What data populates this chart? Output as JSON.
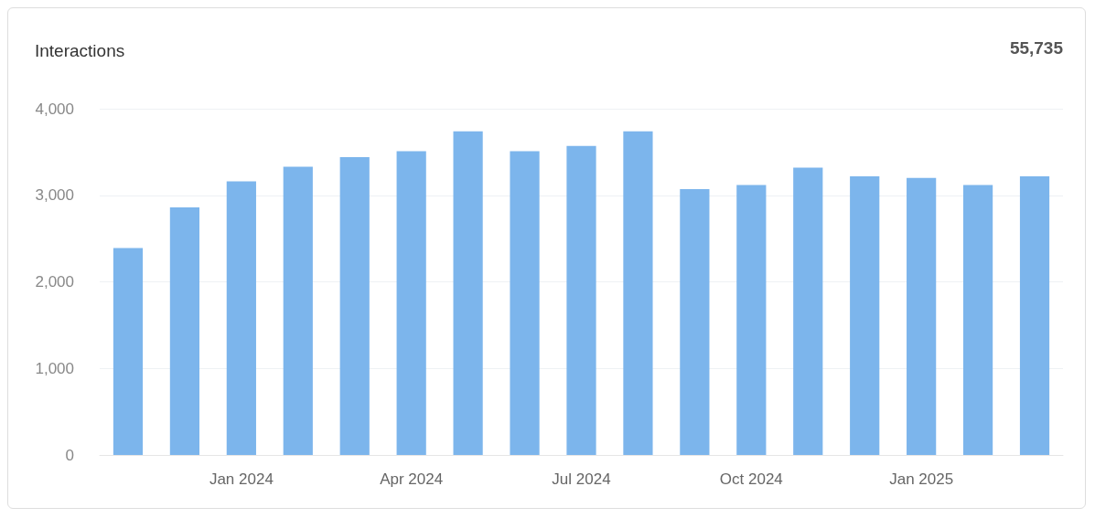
{
  "chart_data": {
    "type": "bar",
    "title": "Interactions",
    "annotations": [
      "55,735"
    ],
    "categories": [
      null,
      null,
      "Jan 2024",
      null,
      null,
      "Apr 2024",
      null,
      null,
      "Jul 2024",
      null,
      null,
      "Oct 2024",
      null,
      null,
      "Jan 2025",
      null,
      null
    ],
    "values": [
      2390,
      2860,
      3160,
      3330,
      3440,
      3510,
      3740,
      3510,
      3570,
      3740,
      3070,
      3120,
      3320,
      3220,
      3200,
      3120,
      3220
    ],
    "color": "#7cb5ec",
    "ylim": [
      0,
      4000
    ],
    "yticks": [
      0,
      {
        "value": 1000,
        "label": "1,000"
      },
      {
        "value": 2000,
        "label": "2,000"
      },
      {
        "value": 3000,
        "label": "3,000"
      },
      {
        "value": 4000,
        "label": "4,000"
      }
    ],
    "grid": "y"
  }
}
